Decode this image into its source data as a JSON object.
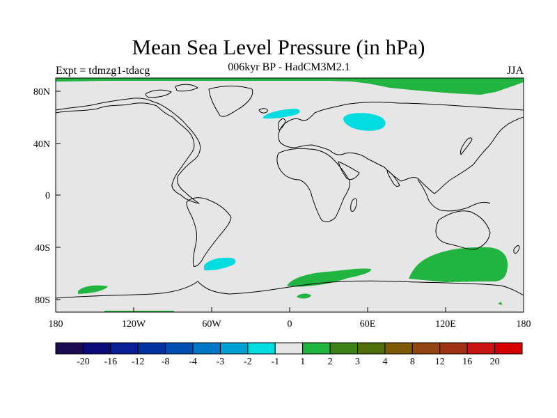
{
  "title": "Mean Sea Level Pressure (in hPa)",
  "subtitle": "006kyr BP - HadCM3M2.1",
  "experiment_label": "Expt = tdmzg1-tdacg",
  "season": "JJA",
  "axes": {
    "x_ticks": [
      "180",
      "120W",
      "60W",
      "0",
      "60E",
      "120E",
      "180"
    ],
    "y_ticks": [
      "80N",
      "40N",
      "0",
      "40S",
      "80S"
    ]
  },
  "colorbar": {
    "colors": [
      "#1a0c4e",
      "#0c0c78",
      "#0a1e96",
      "#0032a0",
      "#0050b4",
      "#0078c8",
      "#00a0d2",
      "#00dce0",
      "#e6e6e6",
      "#21b441",
      "#3c8219",
      "#506e0a",
      "#7d5a05",
      "#914614",
      "#a03214",
      "#c81414",
      "#d70000"
    ],
    "labels": [
      "-20",
      "-16",
      "-12",
      "-8",
      "-4",
      "-3",
      "-2",
      "-1",
      "1",
      "2",
      "3",
      "4",
      "8",
      "12",
      "16",
      "20"
    ]
  },
  "map": {
    "background_color": "#e6e6e6",
    "coastline_color": "#000000"
  }
}
